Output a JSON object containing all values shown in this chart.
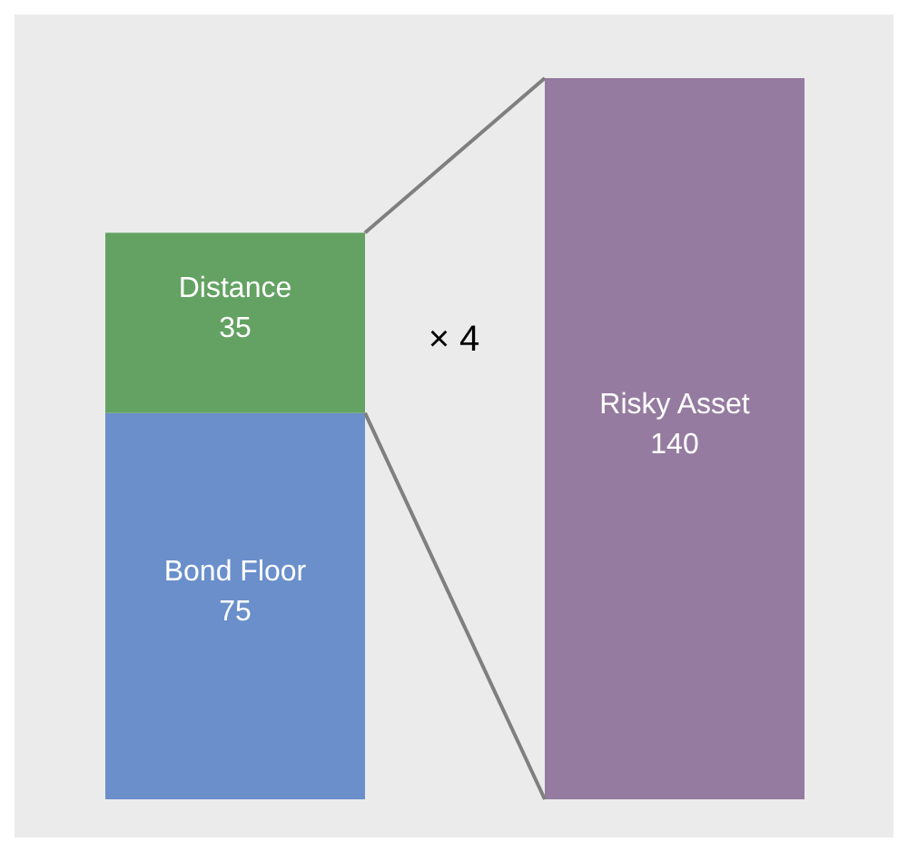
{
  "chart_data": {
    "type": "bar",
    "stacked": true,
    "categories": [
      null,
      null
    ],
    "series": [
      {
        "name": "Bond Floor",
        "color": "#6a8fcb",
        "values": [
          75,
          null
        ]
      },
      {
        "name": "Distance",
        "color": "#63a263",
        "values": [
          35,
          null
        ]
      },
      {
        "name": "Risky Asset",
        "color": "#957ba0",
        "values": [
          null,
          140
        ]
      }
    ],
    "data_labels": true,
    "annotations": [
      "× 4"
    ]
  }
}
